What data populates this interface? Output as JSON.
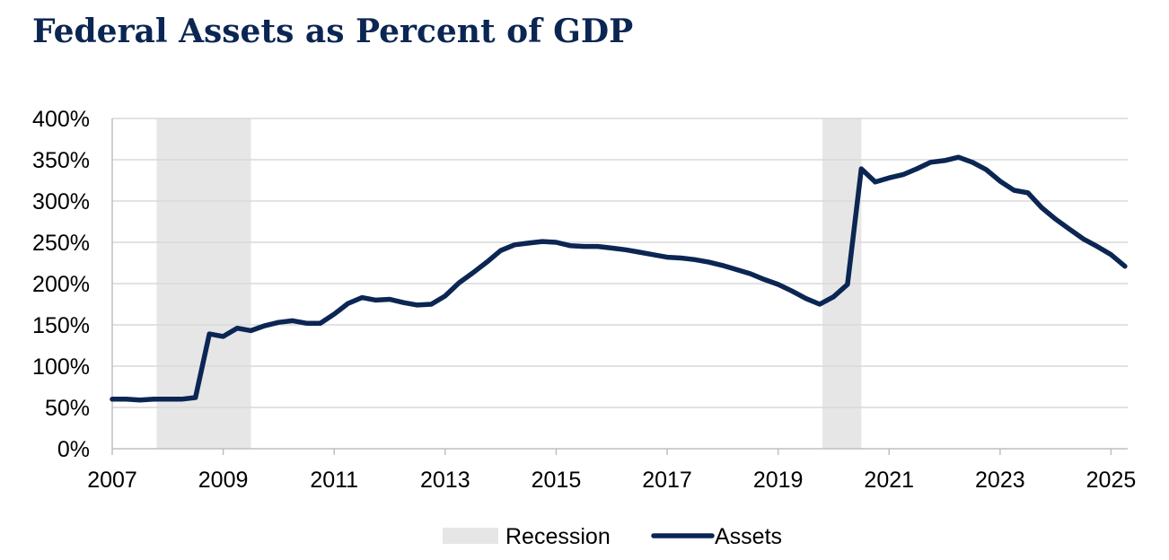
{
  "chart_data": {
    "type": "line",
    "title": "Federal Assets as Percent of GDP",
    "xlabel": "",
    "ylabel": "",
    "xlim": [
      2007.0,
      2025.3
    ],
    "ylim": [
      0,
      400
    ],
    "grid": true,
    "legend_position": "bottom-center",
    "x_ticks": [
      "2007",
      "2009",
      "2011",
      "2013",
      "2015",
      "2017",
      "2019",
      "2021",
      "2023",
      "2025"
    ],
    "y_ticks": [
      "0%",
      "50%",
      "100%",
      "150%",
      "200%",
      "250%",
      "300%",
      "350%",
      "400%"
    ],
    "recessions": [
      {
        "start": 2007.8,
        "end": 2009.5
      },
      {
        "start": 2019.8,
        "end": 2020.5
      }
    ],
    "series": [
      {
        "name": "Assets",
        "color": "#0b2653",
        "x": [
          2007.0,
          2007.25,
          2007.5,
          2007.75,
          2008.0,
          2008.25,
          2008.5,
          2008.75,
          2009.0,
          2009.25,
          2009.5,
          2009.75,
          2010.0,
          2010.25,
          2010.5,
          2010.75,
          2011.0,
          2011.25,
          2011.5,
          2011.75,
          2012.0,
          2012.25,
          2012.5,
          2012.75,
          2013.0,
          2013.25,
          2013.5,
          2013.75,
          2014.0,
          2014.25,
          2014.5,
          2014.75,
          2015.0,
          2015.25,
          2015.5,
          2015.75,
          2016.0,
          2016.25,
          2016.5,
          2016.75,
          2017.0,
          2017.25,
          2017.5,
          2017.75,
          2018.0,
          2018.25,
          2018.5,
          2018.75,
          2019.0,
          2019.25,
          2019.5,
          2019.75,
          2020.0,
          2020.25,
          2020.5,
          2020.75,
          2021.0,
          2021.25,
          2021.5,
          2021.75,
          2022.0,
          2022.25,
          2022.5,
          2022.75,
          2023.0,
          2023.25,
          2023.5,
          2023.75,
          2024.0,
          2024.25,
          2024.5,
          2024.75,
          2025.0,
          2025.25
        ],
        "values": [
          60,
          60,
          59,
          60,
          60,
          60,
          62,
          139,
          136,
          146,
          143,
          149,
          153,
          155,
          152,
          152,
          163,
          176,
          183,
          180,
          181,
          177,
          174,
          175,
          185,
          201,
          213,
          226,
          240,
          247,
          249,
          251,
          250,
          246,
          245,
          245,
          243,
          241,
          238,
          235,
          232,
          231,
          229,
          226,
          222,
          217,
          212,
          205,
          199,
          191,
          182,
          175,
          184,
          199,
          339,
          323,
          328,
          332,
          339,
          347,
          349,
          353,
          347,
          338,
          324,
          313,
          310,
          292,
          278,
          266,
          254,
          245,
          235,
          221
        ]
      }
    ],
    "legend": [
      {
        "label": "Recession",
        "color": "#e6e6e6",
        "kind": "box"
      },
      {
        "label": "Assets",
        "color": "#0b2653",
        "kind": "line"
      }
    ]
  }
}
